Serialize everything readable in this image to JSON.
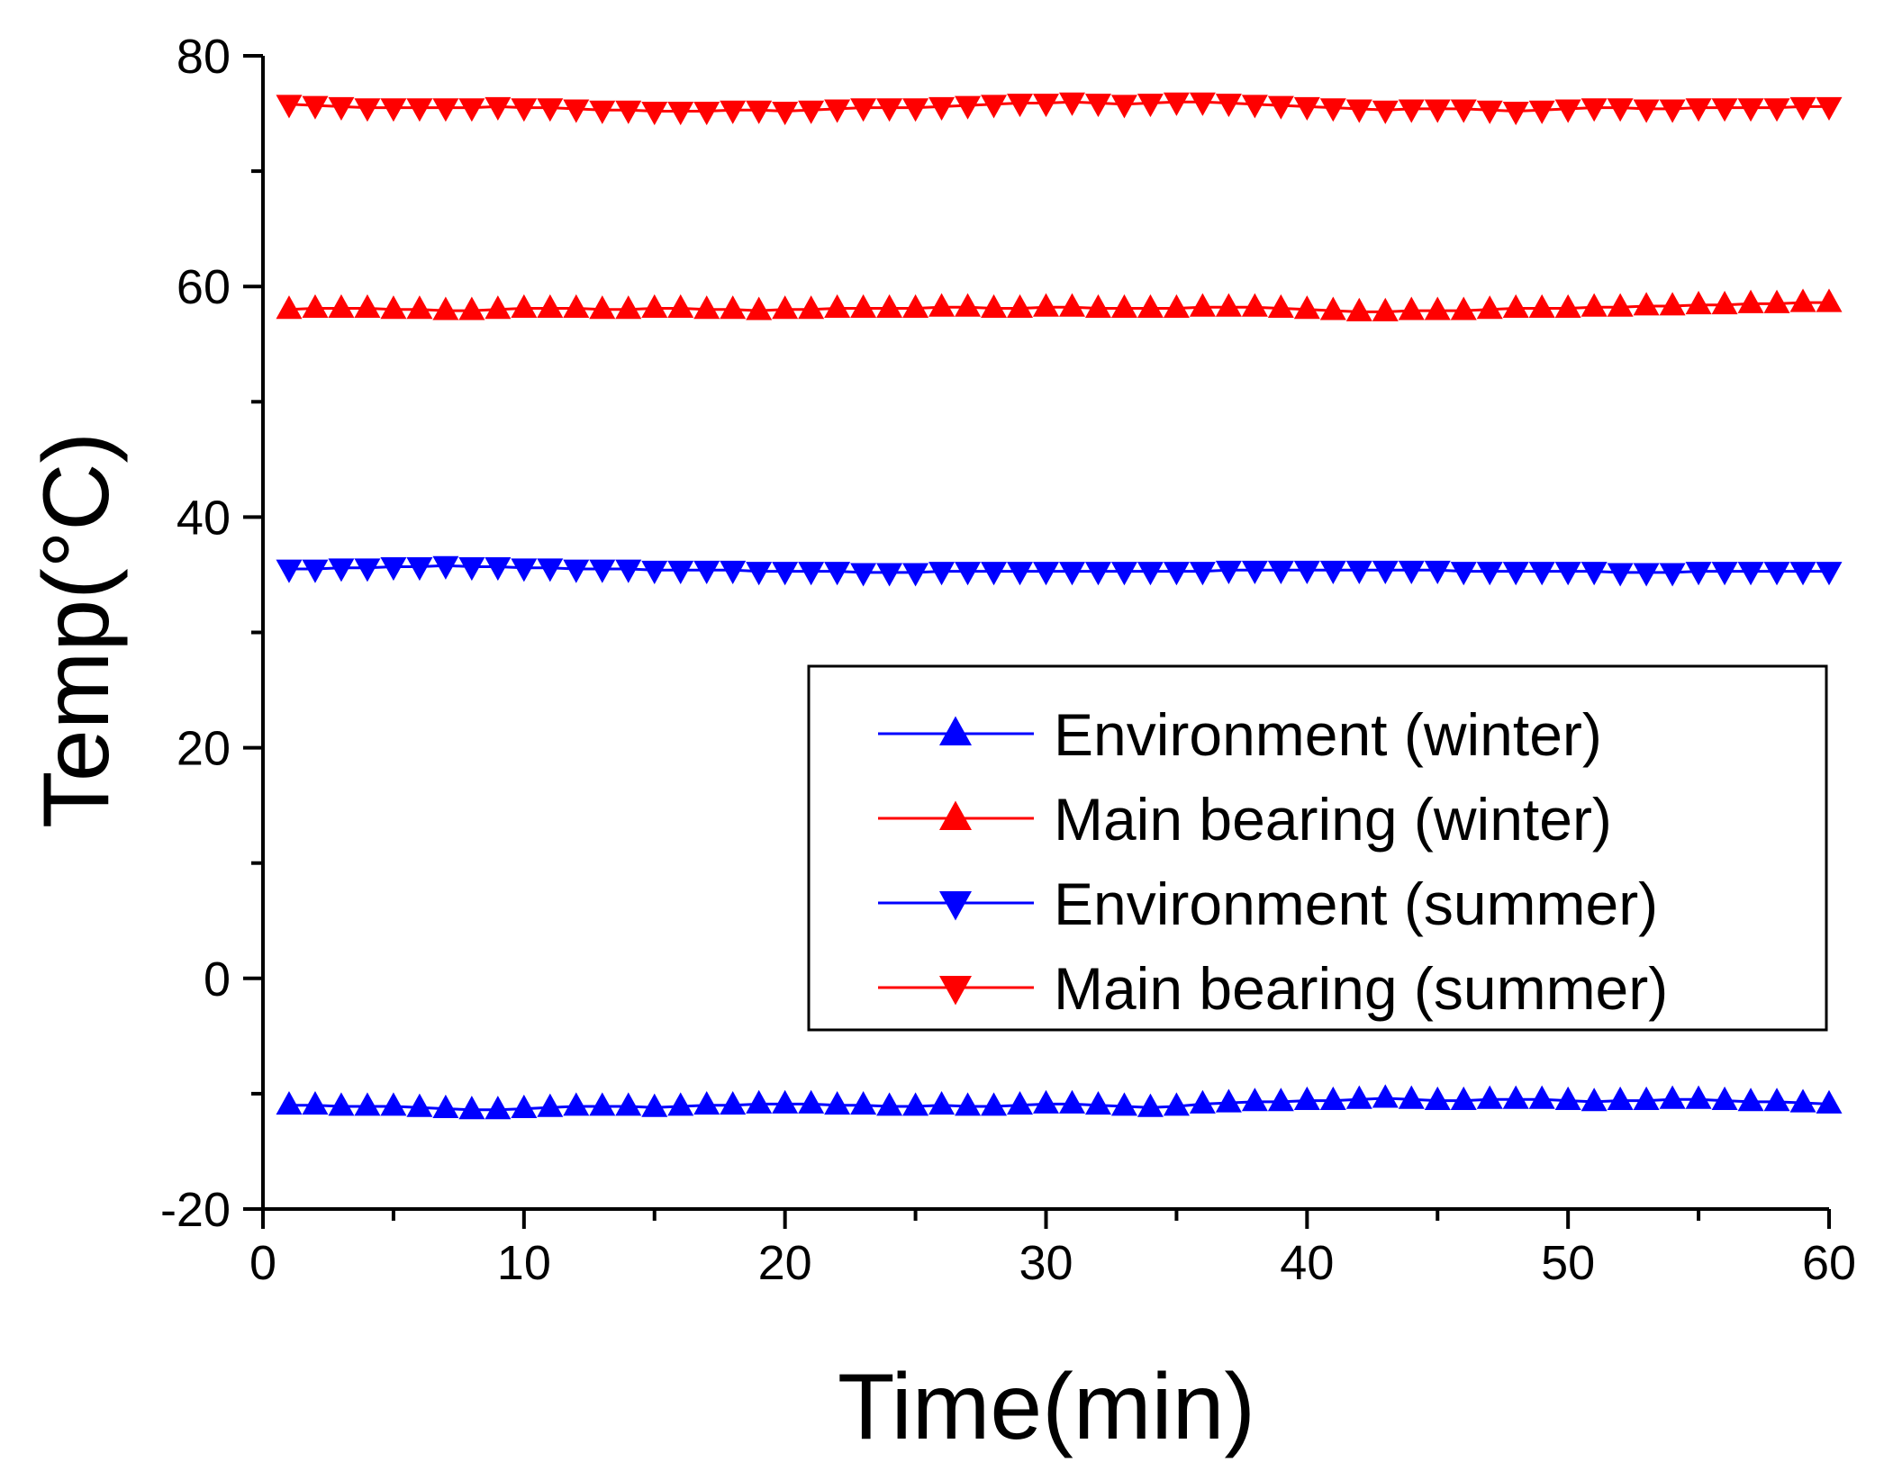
{
  "chart_data": {
    "type": "line",
    "title": "",
    "xlabel": "Time(min)",
    "ylabel": "Temp(°C)",
    "xlim": [
      0,
      60
    ],
    "ylim": [
      -20,
      80
    ],
    "x_ticks": [
      0,
      10,
      20,
      30,
      40,
      50,
      60
    ],
    "x_tick_labels": [
      "0",
      "10",
      "20",
      "30",
      "40",
      "50",
      "60"
    ],
    "y_ticks": [
      -20,
      0,
      20,
      40,
      60,
      80
    ],
    "y_tick_labels": [
      "-20",
      "0",
      "20",
      "40",
      "60",
      "80"
    ],
    "grid": false,
    "legend_position": "center-right",
    "x": [
      1,
      2,
      3,
      4,
      5,
      6,
      7,
      8,
      9,
      10,
      11,
      12,
      13,
      14,
      15,
      16,
      17,
      18,
      19,
      20,
      21,
      22,
      23,
      24,
      25,
      26,
      27,
      28,
      29,
      30,
      31,
      32,
      33,
      34,
      35,
      36,
      37,
      38,
      39,
      40,
      41,
      42,
      43,
      44,
      45,
      46,
      47,
      48,
      49,
      50,
      51,
      52,
      53,
      54,
      55,
      56,
      57,
      58,
      59,
      60
    ],
    "series": [
      {
        "name": "Environment (winter)",
        "color": "#0000ff",
        "marker": "triangle-up",
        "values": [
          -11.0,
          -11.0,
          -11.1,
          -11.1,
          -11.1,
          -11.2,
          -11.3,
          -11.4,
          -11.4,
          -11.3,
          -11.2,
          -11.1,
          -11.1,
          -11.1,
          -11.2,
          -11.1,
          -11.0,
          -11.0,
          -10.9,
          -10.9,
          -10.9,
          -11.0,
          -11.0,
          -11.1,
          -11.1,
          -11.0,
          -11.1,
          -11.1,
          -11.0,
          -10.9,
          -10.9,
          -11.0,
          -11.1,
          -11.2,
          -11.1,
          -10.9,
          -10.8,
          -10.7,
          -10.7,
          -10.6,
          -10.6,
          -10.5,
          -10.4,
          -10.5,
          -10.6,
          -10.6,
          -10.5,
          -10.5,
          -10.5,
          -10.6,
          -10.7,
          -10.6,
          -10.6,
          -10.5,
          -10.5,
          -10.6,
          -10.7,
          -10.7,
          -10.8,
          -10.9
        ]
      },
      {
        "name": "Main bearing (winter)",
        "color": "#ff0000",
        "marker": "triangle-up",
        "values": [
          58.0,
          58.1,
          58.1,
          58.1,
          58.0,
          58.0,
          57.9,
          57.9,
          58.0,
          58.1,
          58.1,
          58.1,
          58.0,
          58.0,
          58.1,
          58.1,
          58.0,
          58.0,
          57.9,
          58.0,
          58.0,
          58.1,
          58.1,
          58.1,
          58.1,
          58.2,
          58.2,
          58.1,
          58.1,
          58.2,
          58.2,
          58.1,
          58.1,
          58.1,
          58.1,
          58.2,
          58.2,
          58.2,
          58.1,
          58.0,
          57.9,
          57.8,
          57.8,
          57.9,
          57.9,
          57.9,
          58.0,
          58.1,
          58.1,
          58.1,
          58.2,
          58.2,
          58.3,
          58.3,
          58.4,
          58.4,
          58.5,
          58.5,
          58.6,
          58.6
        ]
      },
      {
        "name": "Environment (summer)",
        "color": "#0000ff",
        "marker": "triangle-down",
        "values": [
          35.5,
          35.5,
          35.6,
          35.6,
          35.7,
          35.7,
          35.8,
          35.7,
          35.7,
          35.6,
          35.6,
          35.5,
          35.5,
          35.5,
          35.4,
          35.4,
          35.4,
          35.4,
          35.3,
          35.3,
          35.3,
          35.3,
          35.2,
          35.2,
          35.2,
          35.3,
          35.3,
          35.3,
          35.3,
          35.3,
          35.3,
          35.3,
          35.3,
          35.3,
          35.3,
          35.3,
          35.4,
          35.4,
          35.4,
          35.4,
          35.4,
          35.4,
          35.4,
          35.4,
          35.4,
          35.3,
          35.3,
          35.3,
          35.3,
          35.3,
          35.3,
          35.2,
          35.2,
          35.2,
          35.3,
          35.3,
          35.3,
          35.3,
          35.3,
          35.3
        ]
      },
      {
        "name": "Main bearing (summer)",
        "color": "#ff0000",
        "marker": "triangle-down",
        "values": [
          75.8,
          75.7,
          75.6,
          75.5,
          75.5,
          75.5,
          75.5,
          75.5,
          75.6,
          75.5,
          75.5,
          75.4,
          75.3,
          75.3,
          75.2,
          75.2,
          75.2,
          75.3,
          75.3,
          75.2,
          75.3,
          75.4,
          75.5,
          75.5,
          75.5,
          75.6,
          75.7,
          75.8,
          75.9,
          75.9,
          76.0,
          75.9,
          75.8,
          75.9,
          76.0,
          76.0,
          75.9,
          75.8,
          75.7,
          75.6,
          75.5,
          75.4,
          75.3,
          75.4,
          75.4,
          75.4,
          75.3,
          75.2,
          75.3,
          75.4,
          75.5,
          75.5,
          75.4,
          75.4,
          75.5,
          75.5,
          75.5,
          75.5,
          75.6,
          75.6
        ]
      }
    ]
  }
}
